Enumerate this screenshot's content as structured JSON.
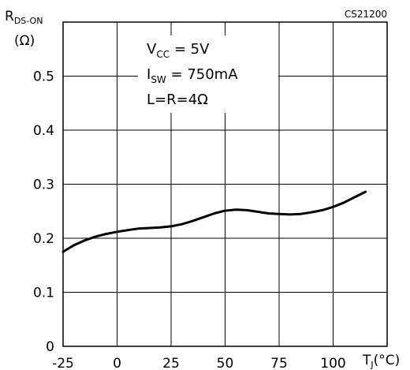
{
  "chart_data": {
    "type": "line",
    "code": "CS21200",
    "ylabel": {
      "main": "R",
      "sub": "DS-ON",
      "unit": "(Ω)"
    },
    "xlabel": {
      "main": "T",
      "sub": "J",
      "unit": "(°C)"
    },
    "xlim": [
      -25,
      125
    ],
    "ylim": [
      0,
      0.6
    ],
    "x_ticks": [
      -25,
      0,
      25,
      50,
      75,
      100
    ],
    "y_ticks": [
      0,
      0.1,
      0.2,
      0.3,
      0.4,
      0.5
    ],
    "x_tick_labels": [
      "-25",
      "0",
      "25",
      "50",
      "75",
      "100"
    ],
    "y_tick_labels": [
      "0",
      "0.1",
      "0.2",
      "0.3",
      "0.4",
      "0.5"
    ],
    "grid": true,
    "annotations": [
      {
        "main": "V",
        "sub": "CC",
        "rest": " =  5V"
      },
      {
        "main": "I",
        "sub": "SW",
        "rest": " =  750mA"
      },
      {
        "main": "L=R=4Ω",
        "sub": "",
        "rest": ""
      }
    ],
    "series": [
      {
        "x": [
          -25,
          -20,
          -15,
          -10,
          -5,
          0,
          5,
          10,
          15,
          20,
          25,
          30,
          35,
          40,
          45,
          50,
          55,
          60,
          65,
          70,
          75,
          80,
          85,
          90,
          95,
          100,
          105,
          110,
          115
        ],
        "values": [
          0.175,
          0.187,
          0.196,
          0.203,
          0.208,
          0.212,
          0.215,
          0.218,
          0.219,
          0.22,
          0.222,
          0.226,
          0.232,
          0.239,
          0.246,
          0.251,
          0.253,
          0.252,
          0.249,
          0.246,
          0.245,
          0.244,
          0.245,
          0.248,
          0.252,
          0.258,
          0.266,
          0.276,
          0.286
        ]
      }
    ]
  }
}
